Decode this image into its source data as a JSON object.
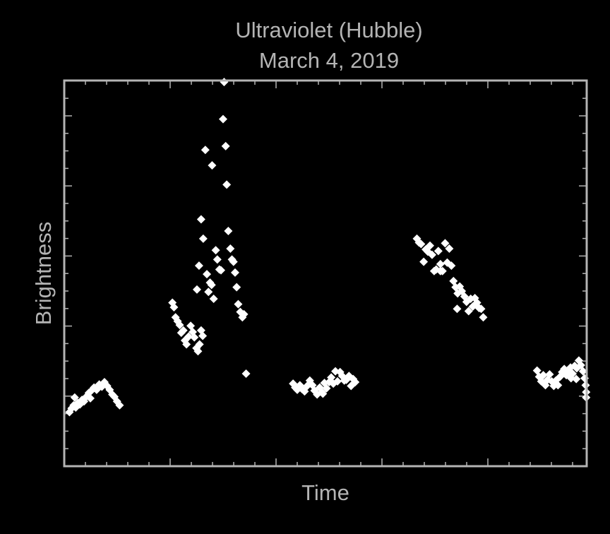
{
  "chart_data": {
    "type": "scatter",
    "title": "Ultraviolet (Hubble)",
    "subtitle": "March 4, 2019",
    "xlabel": "Time",
    "ylabel": "Brightness",
    "xlim": [
      0,
      100
    ],
    "ylim": [
      0,
      100
    ],
    "x_tick_labels": "none",
    "y_tick_labels": "none",
    "grid": false,
    "legend": "none",
    "marker": "diamond",
    "colors": {
      "background": "#000000",
      "frame": "#b4b4b4",
      "text": "#b4b4b4",
      "points": "#ffffff"
    },
    "points": [
      [
        1.0,
        14.0
      ],
      [
        1.4,
        15.0
      ],
      [
        1.8,
        15.8
      ],
      [
        2.2,
        15.2
      ],
      [
        2.6,
        16.4
      ],
      [
        3.0,
        16.0
      ],
      [
        3.4,
        17.2
      ],
      [
        3.8,
        16.8
      ],
      [
        4.2,
        18.0
      ],
      [
        4.7,
        19.0
      ],
      [
        5.2,
        19.6
      ],
      [
        5.7,
        20.4
      ],
      [
        6.2,
        19.8
      ],
      [
        6.7,
        21.2
      ],
      [
        7.2,
        20.6
      ],
      [
        7.7,
        21.8
      ],
      [
        8.2,
        20.8
      ],
      [
        8.7,
        19.8
      ],
      [
        9.2,
        18.6
      ],
      [
        9.6,
        18.0
      ],
      [
        10.1,
        16.8
      ],
      [
        10.6,
        15.8
      ],
      [
        2.0,
        17.8
      ],
      [
        5.0,
        17.6
      ],
      [
        20.7,
        42.4
      ],
      [
        21.0,
        41.2
      ],
      [
        21.3,
        38.6
      ],
      [
        21.7,
        37.6
      ],
      [
        22.1,
        36.6
      ],
      [
        22.4,
        34.6
      ],
      [
        22.8,
        35.2
      ],
      [
        23.1,
        32.6
      ],
      [
        23.4,
        31.6
      ],
      [
        23.8,
        33.6
      ],
      [
        24.2,
        36.4
      ],
      [
        24.6,
        34.8
      ],
      [
        24.9,
        33.4
      ],
      [
        25.3,
        30.6
      ],
      [
        25.6,
        29.8
      ],
      [
        25.9,
        31.6
      ],
      [
        26.2,
        35.2
      ],
      [
        26.5,
        33.8
      ],
      [
        25.4,
        45.8
      ],
      [
        25.8,
        52.0
      ],
      [
        26.2,
        64.0
      ],
      [
        26.6,
        59.0
      ],
      [
        27.0,
        82.0
      ],
      [
        27.3,
        49.8
      ],
      [
        27.6,
        45.2
      ],
      [
        27.9,
        47.6
      ],
      [
        28.2,
        47.0
      ],
      [
        28.6,
        43.4
      ],
      [
        29.0,
        56.0
      ],
      [
        29.3,
        53.6
      ],
      [
        29.7,
        51.0
      ],
      [
        30.0,
        50.8
      ],
      [
        28.3,
        78.0
      ],
      [
        30.4,
        90.0
      ],
      [
        30.6,
        99.6
      ],
      [
        30.9,
        83.0
      ],
      [
        31.1,
        73.0
      ],
      [
        31.4,
        61.0
      ],
      [
        31.8,
        56.4
      ],
      [
        32.1,
        53.6
      ],
      [
        32.4,
        53.0
      ],
      [
        32.7,
        50.2
      ],
      [
        33.0,
        46.4
      ],
      [
        33.3,
        42.0
      ],
      [
        33.7,
        40.0
      ],
      [
        34.1,
        38.6
      ],
      [
        34.4,
        39.4
      ],
      [
        34.8,
        24.0
      ],
      [
        43.8,
        21.4
      ],
      [
        44.2,
        20.4
      ],
      [
        44.6,
        19.8
      ],
      [
        45.1,
        21.0
      ],
      [
        45.5,
        20.0
      ],
      [
        46.0,
        19.4
      ],
      [
        46.5,
        20.8
      ],
      [
        47.0,
        22.2
      ],
      [
        47.5,
        21.0
      ],
      [
        47.9,
        19.6
      ],
      [
        48.4,
        18.6
      ],
      [
        48.9,
        20.4
      ],
      [
        49.3,
        19.2
      ],
      [
        49.8,
        21.6
      ],
      [
        50.2,
        20.2
      ],
      [
        50.7,
        21.8
      ],
      [
        51.1,
        23.0
      ],
      [
        51.5,
        21.4
      ],
      [
        51.9,
        24.6
      ],
      [
        52.3,
        22.0
      ],
      [
        52.8,
        24.4
      ],
      [
        53.2,
        23.4
      ],
      [
        53.6,
        22.2
      ],
      [
        54.0,
        22.4
      ],
      [
        54.5,
        23.4
      ],
      [
        54.9,
        20.8
      ],
      [
        55.3,
        22.6
      ],
      [
        55.7,
        21.8
      ],
      [
        49.5,
        18.8
      ],
      [
        67.5,
        59.0
      ],
      [
        67.9,
        58.0
      ],
      [
        68.3,
        57.6
      ],
      [
        68.8,
        53.0
      ],
      [
        69.2,
        56.2
      ],
      [
        69.6,
        55.6
      ],
      [
        70.0,
        57.2
      ],
      [
        70.4,
        54.8
      ],
      [
        70.8,
        50.6
      ],
      [
        71.2,
        51.0
      ],
      [
        71.6,
        55.8
      ],
      [
        72.0,
        52.4
      ],
      [
        72.4,
        50.6
      ],
      [
        72.9,
        57.8
      ],
      [
        73.3,
        52.8
      ],
      [
        73.7,
        56.4
      ],
      [
        74.1,
        52.0
      ],
      [
        74.5,
        48.0
      ],
      [
        74.9,
        46.4
      ],
      [
        75.3,
        44.8
      ],
      [
        75.7,
        46.6
      ],
      [
        76.1,
        45.4
      ],
      [
        76.6,
        44.0
      ],
      [
        77.0,
        42.6
      ],
      [
        77.4,
        40.2
      ],
      [
        77.8,
        43.4
      ],
      [
        78.2,
        41.4
      ],
      [
        78.6,
        43.6
      ],
      [
        79.0,
        42.4
      ],
      [
        79.4,
        41.0
      ],
      [
        79.8,
        40.8
      ],
      [
        80.2,
        38.6
      ],
      [
        75.2,
        40.8
      ],
      [
        72.0,
        50.6
      ],
      [
        90.5,
        24.8
      ],
      [
        90.9,
        23.2
      ],
      [
        91.3,
        22.0
      ],
      [
        91.7,
        23.6
      ],
      [
        92.1,
        21.0
      ],
      [
        92.5,
        22.4
      ],
      [
        92.9,
        23.8
      ],
      [
        93.3,
        22.0
      ],
      [
        93.7,
        20.8
      ],
      [
        94.1,
        22.2
      ],
      [
        94.5,
        21.0
      ],
      [
        94.9,
        23.2
      ],
      [
        95.3,
        24.4
      ],
      [
        95.7,
        25.2
      ],
      [
        96.1,
        23.6
      ],
      [
        96.5,
        24.2
      ],
      [
        96.9,
        25.6
      ],
      [
        97.3,
        24.0
      ],
      [
        97.7,
        26.0
      ],
      [
        98.1,
        25.4
      ],
      [
        98.5,
        27.4
      ],
      [
        98.9,
        26.2
      ],
      [
        99.3,
        24.6
      ],
      [
        99.6,
        22.8
      ],
      [
        99.8,
        21.0
      ],
      [
        99.9,
        19.2
      ],
      [
        99.9,
        17.8
      ],
      [
        98.0,
        22.6
      ],
      [
        97.0,
        22.8
      ]
    ]
  }
}
